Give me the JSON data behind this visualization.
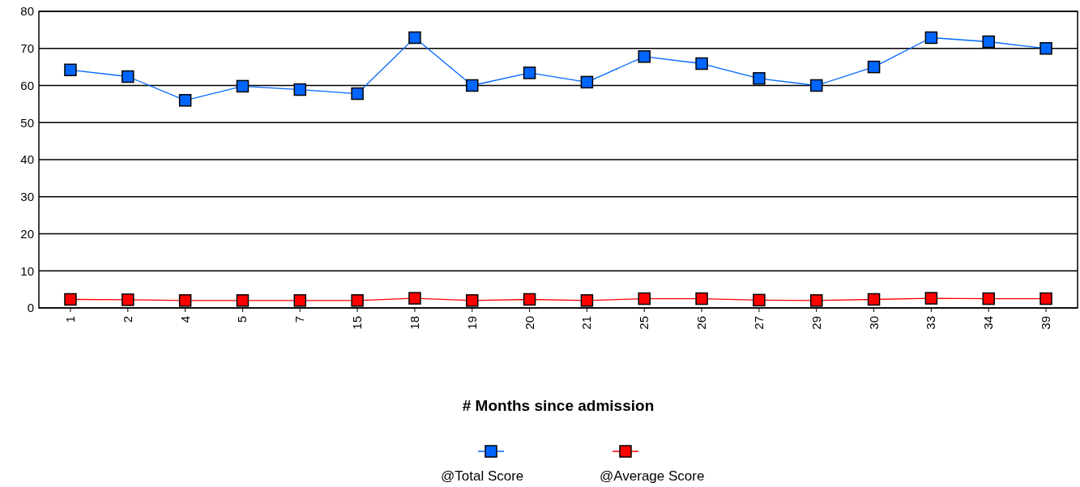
{
  "chart_data": {
    "type": "line",
    "xlabel": "# Months since admission",
    "categories": [
      "1",
      "2",
      "4",
      "5",
      "7",
      "15",
      "18",
      "19",
      "20",
      "21",
      "25",
      "26",
      "27",
      "29",
      "30",
      "33",
      "34",
      "39"
    ],
    "series": [
      {
        "name": "@Total Score",
        "color": "#0066ff",
        "values": [
          64.2,
          62.4,
          56,
          59.8,
          58.9,
          57.8,
          72.9,
          60,
          63.4,
          60.9,
          67.8,
          65.9,
          61.9,
          60,
          65,
          72.9,
          71.8,
          70
        ]
      },
      {
        "name": "@Average Score",
        "color": "#ff0000",
        "values": [
          2.3,
          2.2,
          2.0,
          2.0,
          2.0,
          2.0,
          2.6,
          2.0,
          2.3,
          2.0,
          2.5,
          2.5,
          2.1,
          2.0,
          2.3,
          2.6,
          2.5,
          2.5
        ]
      }
    ],
    "ylim": [
      0,
      80
    ],
    "yticks": [
      0,
      10,
      20,
      30,
      40,
      50,
      60,
      70,
      80
    ],
    "grid": "y",
    "legend": "bottom",
    "marker": "square",
    "line_style": "solid"
  }
}
